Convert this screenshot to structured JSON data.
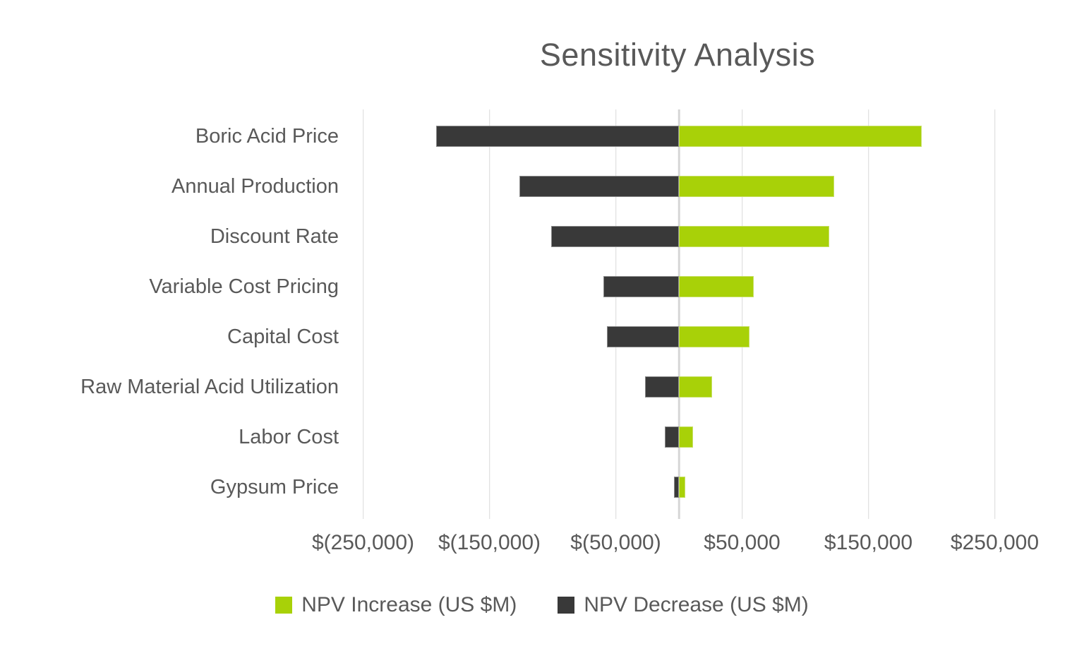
{
  "chart_data": {
    "type": "bar",
    "subtype": "tornado",
    "orientation": "horizontal",
    "title": "Sensitivity Analysis",
    "categories": [
      "Boric Acid Price",
      "Annual Production",
      "Discount Rate",
      "Variable Cost Pricing",
      "Capital Cost",
      "Raw Material Acid Utilization",
      "Labor Cost",
      "Gypsum Price"
    ],
    "series": [
      {
        "name": "NPV Increase (US $M)",
        "color": "#a8d108",
        "values": [
          192000,
          123000,
          119000,
          59000,
          56000,
          26000,
          11000,
          5000
        ]
      },
      {
        "name": "NPV Decrease (US $M)",
        "color": "#393939",
        "values": [
          -192000,
          -126000,
          -101000,
          -60000,
          -57000,
          -27000,
          -11000,
          -4000
        ]
      }
    ],
    "x_tick_labels": [
      "$(250,000)",
      "$(150,000)",
      "$(50,000)",
      "$50,000",
      "$150,000",
      "$250,000"
    ],
    "x_tick_values": [
      -250000,
      -150000,
      -50000,
      50000,
      150000,
      250000
    ],
    "xlim": [
      -260000,
      320000
    ],
    "grid": "vertical",
    "legend_position": "bottom"
  },
  "legend": [
    {
      "label": "NPV Increase (US $M)",
      "color": "#a8d108"
    },
    {
      "label": "NPV Decrease (US $M)",
      "color": "#393939"
    }
  ],
  "colors": {
    "text": "#595959",
    "gridline": "#d9d9d9",
    "background": "#ffffff",
    "npv_increase": "#a8d108",
    "npv_decrease": "#393939"
  }
}
